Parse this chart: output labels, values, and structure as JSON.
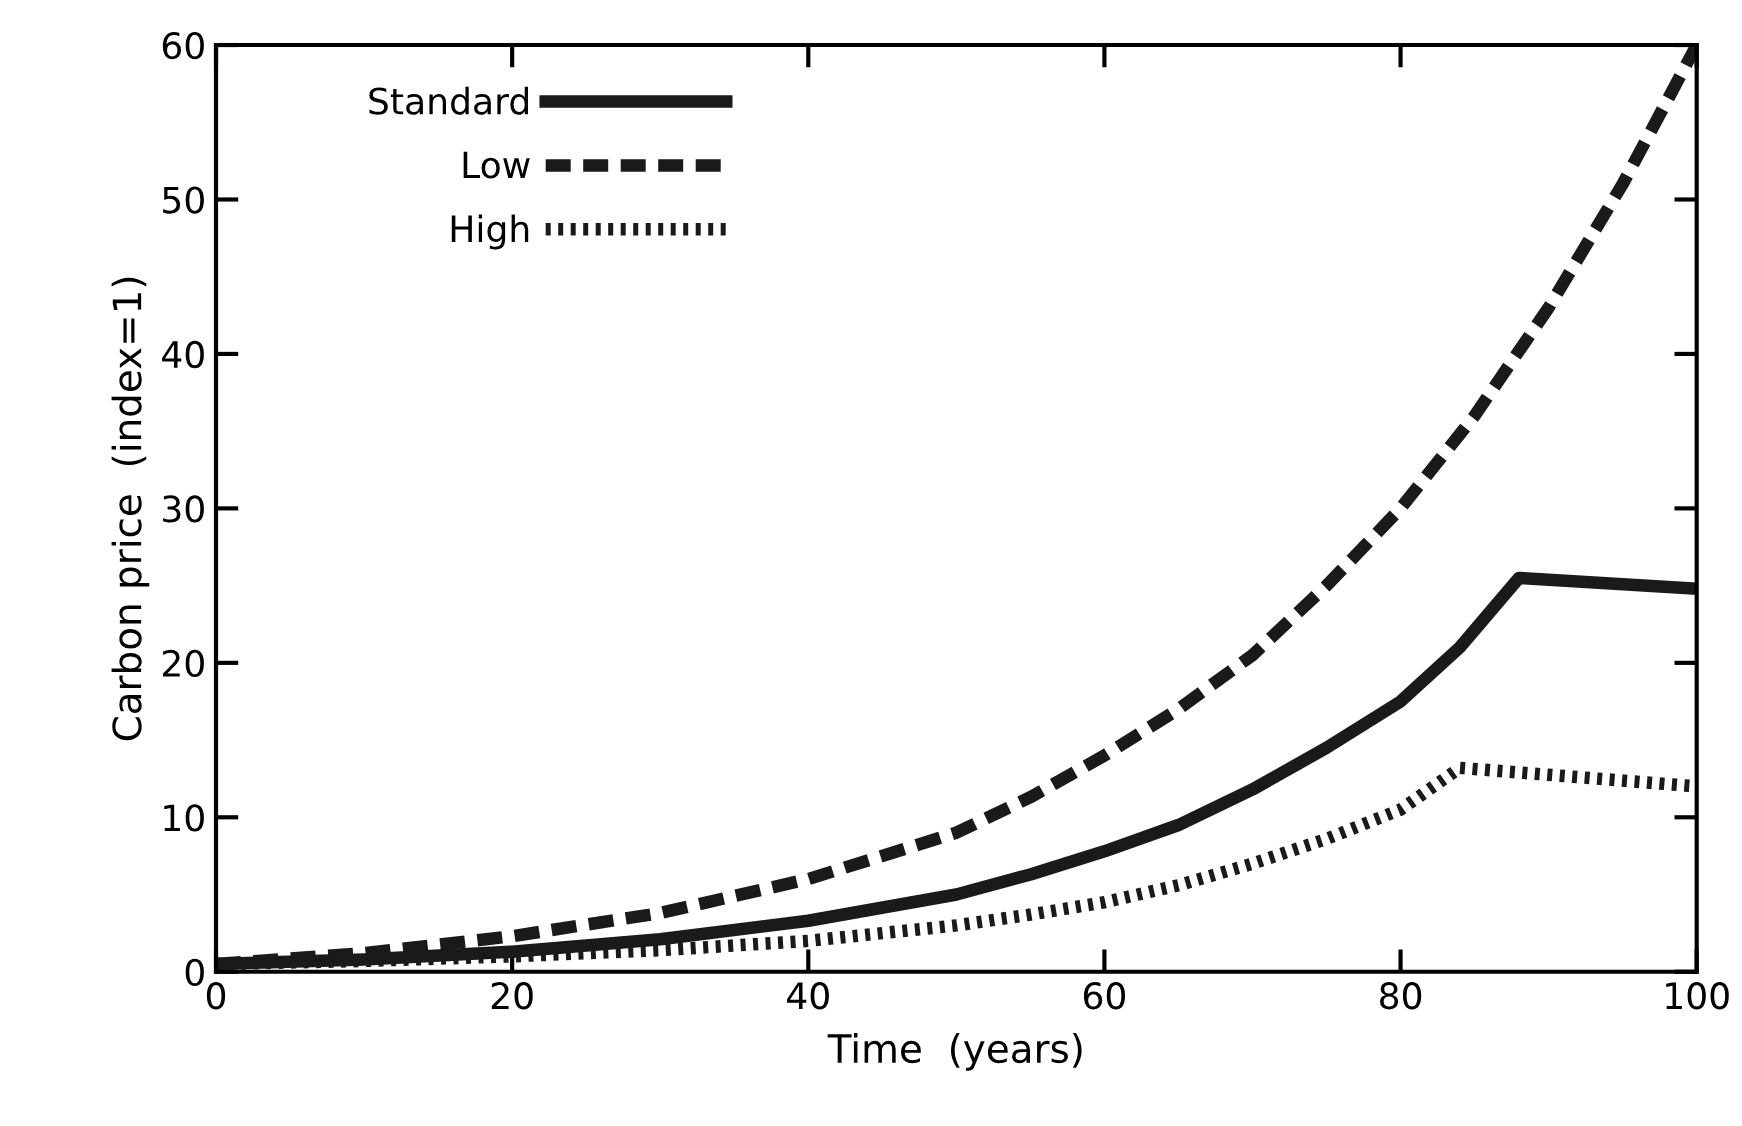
{
  "chart_data": {
    "type": "line",
    "xlabel": "Time  (years)",
    "ylabel": "Carbon price  (index=1)",
    "xlim": [
      0,
      100
    ],
    "ylim": [
      0,
      60
    ],
    "xticks": [
      0,
      20,
      40,
      60,
      80,
      100
    ],
    "yticks": [
      0,
      10,
      20,
      30,
      40,
      50,
      60
    ],
    "grid": false,
    "legend": "top left",
    "marker": "none",
    "series": [
      {
        "name": "Standard",
        "color": "#1a1a1a",
        "line_style": "solid",
        "x": [
          0,
          10,
          20,
          30,
          40,
          50,
          55,
          60,
          65,
          70,
          75,
          80,
          84,
          88,
          100
        ],
        "values": [
          0.5,
          0.8,
          1.3,
          2.1,
          3.3,
          5,
          6.3,
          7.8,
          9.5,
          11.8,
          14.5,
          17.5,
          21,
          25.5,
          24.8
        ]
      },
      {
        "name": "Low",
        "color": "#1a1a1a",
        "line_style": "dashed",
        "x": [
          0,
          10,
          20,
          30,
          40,
          50,
          55,
          60,
          65,
          70,
          75,
          80,
          85,
          90,
          95,
          100
        ],
        "values": [
          0.5,
          1.2,
          2.3,
          3.8,
          6,
          9,
          11.3,
          14,
          17,
          20.5,
          25,
          30,
          36,
          43,
          51,
          60
        ]
      },
      {
        "name": "High",
        "color": "#1a1a1a",
        "line_style": "dotted",
        "x": [
          0,
          10,
          20,
          30,
          40,
          50,
          55,
          60,
          65,
          70,
          75,
          80,
          84,
          100
        ],
        "values": [
          0.5,
          0.7,
          1,
          1.4,
          2,
          3,
          3.7,
          4.5,
          5.6,
          7,
          8.6,
          10.5,
          13.2,
          12
        ]
      }
    ]
  }
}
